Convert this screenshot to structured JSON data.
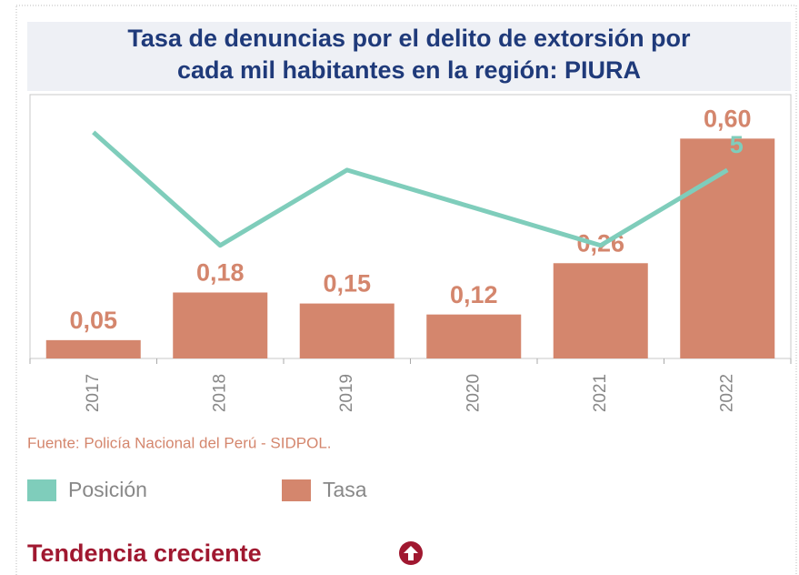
{
  "chart_data": {
    "type": "bar_line",
    "title": [
      "Tasa de denuncias por el delito de extorsión por",
      "cada mil habitantes en la región: PIURA"
    ],
    "categories": [
      "2017",
      "2018",
      "2019",
      "2020",
      "2021",
      "2022"
    ],
    "ylim": [
      0,
      0.72
    ],
    "y2lim": [
      3,
      10
    ],
    "y2_inverted": true,
    "series": [
      {
        "name": "Posición",
        "color": "#7fcdbb",
        "kind": "line",
        "axis": "y2",
        "values": [
          4,
          7,
          5,
          6,
          7,
          5
        ],
        "label_last": true
      },
      {
        "name": "Tasa",
        "color": "#d4866d",
        "kind": "bar",
        "values": [
          0.05,
          0.18,
          0.15,
          0.12,
          0.26,
          0.6
        ],
        "value_labels": [
          "0,05",
          "0,18",
          "0,15",
          "0,12",
          "0,26",
          "0,60"
        ]
      }
    ],
    "source": "Fuente: Policía Nacional del Perú - SIDPOL."
  },
  "trend": {
    "label": "Tendencia creciente"
  }
}
